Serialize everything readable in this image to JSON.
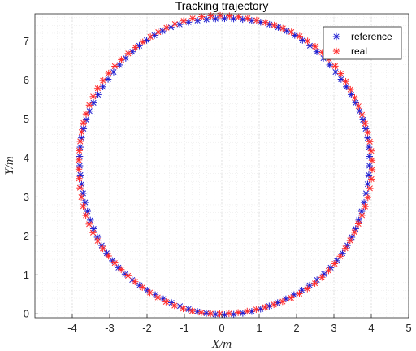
{
  "chart_data": {
    "type": "scatter",
    "title": "Tracking trajectory",
    "xlabel": "X/m",
    "ylabel": "Y/m",
    "xlim": [
      -5,
      5
    ],
    "ylim": [
      -0.1,
      7.7
    ],
    "xticks": [
      "-4",
      "-3",
      "-2",
      "-1",
      "0",
      "1",
      "2",
      "3",
      "4",
      "5"
    ],
    "yticks": [
      "0",
      "1",
      "2",
      "3",
      "4",
      "5",
      "6",
      "7"
    ],
    "grid": "major and minor, dotted",
    "legend_position": "top-right",
    "marker": "asterisk",
    "series": [
      {
        "name": "reference",
        "color": "#1f1fd0",
        "shape": "circle",
        "center": [
          0.07,
          3.8
        ],
        "x_range": [
          -3.8,
          3.95
        ],
        "y_range": [
          0.0,
          7.6
        ],
        "points": 100
      },
      {
        "name": "real",
        "color": "#ff2a2a",
        "shape": "circle",
        "center": [
          0.05,
          3.8
        ],
        "x_range": [
          -3.85,
          4.0
        ],
        "y_range": [
          0.0,
          7.65
        ],
        "points": 100
      }
    ]
  }
}
